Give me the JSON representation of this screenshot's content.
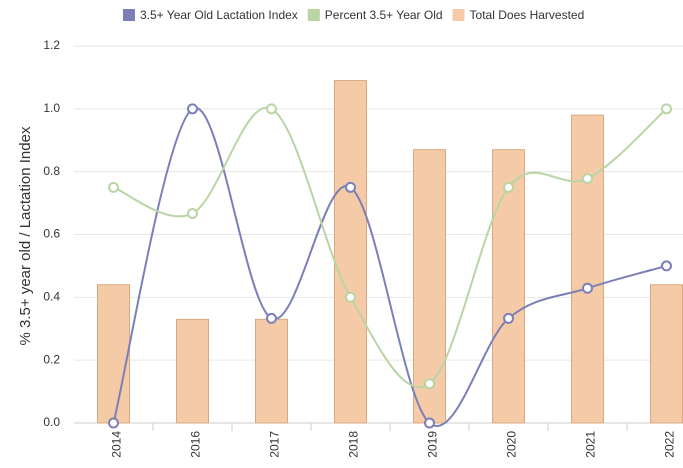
{
  "chart_data": {
    "type": "bar-line",
    "y_label": "% 3.5+ year old / Lactation Index",
    "categories": [
      "2014",
      "2016",
      "2017",
      "2018",
      "2019",
      "2020",
      "2021",
      "2022"
    ],
    "series": [
      {
        "name": "3.5+ Year Old Lactation Index",
        "type": "line",
        "color": "#7b7fb8",
        "values": [
          0,
          1.0,
          0.333,
          0.75,
          0,
          0.333,
          0.429,
          0.5
        ]
      },
      {
        "name": "Percent 3.5+ Year Old",
        "type": "line",
        "color": "#b9d4a5",
        "values": [
          0.75,
          0.667,
          1.0,
          0.4,
          0.125,
          0.75,
          0.778,
          1.0
        ]
      },
      {
        "name": "Total Does Harvested",
        "type": "bar",
        "color": "#f5cba7",
        "values": [
          0.44,
          0.33,
          0.33,
          1.09,
          0.87,
          0.87,
          0.98,
          0.44
        ]
      }
    ],
    "ylim": [
      0,
      1.2
    ],
    "yticks": [
      {
        "value": 0,
        "label": "0.0"
      },
      0.2,
      0.4,
      0.6,
      0.8,
      {
        "value": 1,
        "label": "1.0"
      },
      1.2
    ],
    "grid": true
  }
}
